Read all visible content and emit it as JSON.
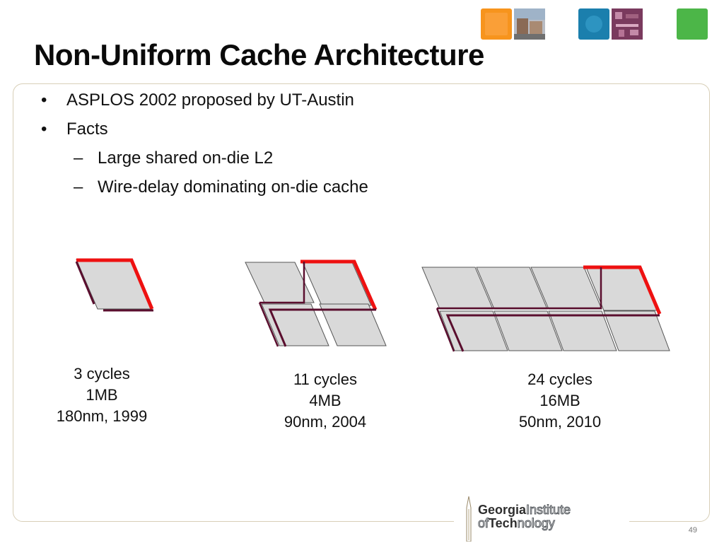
{
  "slide": {
    "title": "Non-Uniform Cache Architecture",
    "bullets": [
      "ASPLOS 2002 proposed by UT-Austin",
      "Facts"
    ],
    "sub_bullets": [
      "Large shared on-die L2",
      "Wire-delay dominating on-die cache"
    ],
    "diagrams": [
      {
        "cycles": "3 cycles",
        "size": "1MB",
        "tech": "180nm, 1999"
      },
      {
        "cycles": "11 cycles",
        "size": "4MB",
        "tech": "90nm, 2004"
      },
      {
        "cycles": "24 cycles",
        "size": "16MB",
        "tech": "50nm, 2010"
      }
    ],
    "logo": {
      "line1_bold": "Georgia",
      "line1_outline": "Institute",
      "line2_outline_a": "of",
      "line2_bold": "Tech",
      "line2_outline_b": "nology"
    },
    "page_number": "49"
  },
  "colors": {
    "cache_bank_fill": "#d9d9d9",
    "accessed_bank_border": "#ee1111",
    "wire_color": "#5a0e2e",
    "frame_border": "#d8cfb8",
    "deco_orange": "#f7941d",
    "deco_blue": "#1b7fad",
    "deco_green": "#4cb648"
  }
}
